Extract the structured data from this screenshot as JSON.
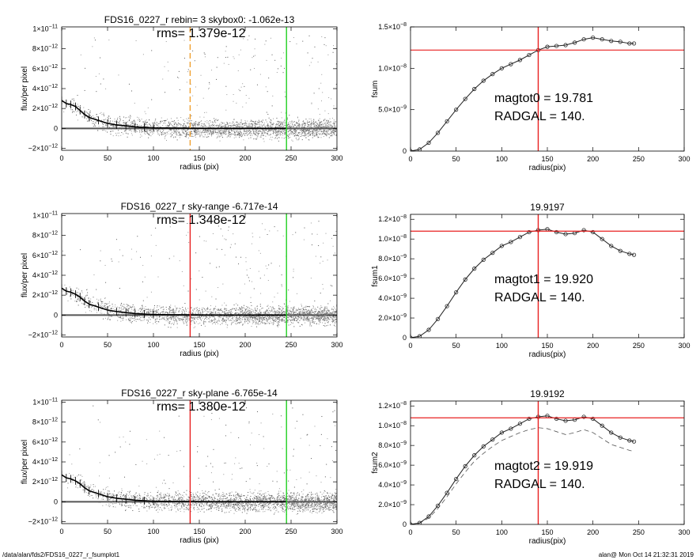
{
  "footer": {
    "path": "/data/alan/fds2/FDS16_0227_r_fsumplot1",
    "stamp": "alan@  Mon Oct 14 21:32:31 2019"
  },
  "colors": {
    "red": "#e82020",
    "green": "#20d020",
    "orange": "#f0a030",
    "grey_points": "#9a9a9a"
  },
  "chart_data": [
    {
      "type": "scatter",
      "title": "FDS16_0227_r rebin= 3    skybox0: -1.062e-13",
      "annotation": "rms= 1.379e-12",
      "xlabel": "radius (pix)",
      "ylabel": "flux/per pixel",
      "xlim": [
        0,
        300
      ],
      "ylim": [
        -2.2e-12,
        1.02e-11
      ],
      "xticks": [
        0,
        50,
        100,
        150,
        200,
        250,
        300
      ],
      "yticks": [
        {
          "v": -2e-12,
          "m": "−2×10",
          "e": "−12"
        },
        {
          "v": 0,
          "m": "0",
          "e": ""
        },
        {
          "v": 2e-12,
          "m": "2×10",
          "e": "−12"
        },
        {
          "v": 4e-12,
          "m": "4×10",
          "e": "−12"
        },
        {
          "v": 6e-12,
          "m": "6×10",
          "e": "−12"
        },
        {
          "v": 8e-12,
          "m": "8×10",
          "e": "−12"
        },
        {
          "v": 1e-11,
          "m": "1×10",
          "e": "−11"
        }
      ],
      "profile_x": [
        0,
        5,
        10,
        15,
        20,
        25,
        30,
        40,
        50,
        60,
        70,
        80,
        90,
        100,
        120,
        140,
        160,
        180,
        200,
        220,
        245
      ],
      "profile_y": [
        2.8e-12,
        2.5e-12,
        2.4e-12,
        2.2e-12,
        1.8e-12,
        1.4e-12,
        1.1e-12,
        8e-13,
        5e-13,
        3.5e-13,
        2.5e-13,
        1.5e-13,
        1e-13,
        5e-14,
        3e-14,
        2e-14,
        0,
        0,
        0,
        0,
        0
      ],
      "vlines": [
        {
          "x": 140,
          "color": "orange",
          "dashed": true
        },
        {
          "x": 245,
          "color": "green",
          "dashed": false
        }
      ]
    },
    {
      "type": "line",
      "title": "",
      "ylabel": "fsum",
      "xlabel": "radius(pix)",
      "xlim": [
        0,
        300
      ],
      "ylim": [
        0,
        1.5e-08
      ],
      "xticks": [
        0,
        50,
        100,
        150,
        200,
        250,
        300
      ],
      "yticks": [
        {
          "v": 0,
          "m": "0",
          "e": ""
        },
        {
          "v": 5e-09,
          "m": "5.0×10",
          "e": "−9"
        },
        {
          "v": 1e-08,
          "m": "1.0×10",
          "e": "−8"
        },
        {
          "v": 1.5e-08,
          "m": "1.5×10",
          "e": "−8"
        }
      ],
      "x": [
        0,
        10,
        20,
        30,
        40,
        50,
        60,
        70,
        80,
        90,
        100,
        110,
        120,
        130,
        140,
        150,
        160,
        170,
        180,
        190,
        200,
        210,
        220,
        230,
        240,
        245
      ],
      "y": [
        0,
        2e-10,
        1e-09,
        2.2e-09,
        3.6e-09,
        5e-09,
        6.3e-09,
        7.5e-09,
        8.5e-09,
        9.3e-09,
        1e-08,
        1.05e-08,
        1.1e-08,
        1.16e-08,
        1.22e-08,
        1.26e-08,
        1.27e-08,
        1.28e-08,
        1.31e-08,
        1.35e-08,
        1.37e-08,
        1.35e-08,
        1.33e-08,
        1.32e-08,
        1.3e-08,
        1.3e-08
      ],
      "hline": 1.22e-08,
      "vline": 140,
      "annotations": [
        "magtot0 =  19.781",
        "RADGAL =    140."
      ]
    },
    {
      "type": "scatter",
      "title": "FDS16_0227_r sky-range -6.717e-14",
      "annotation": "rms= 1.348e-12",
      "xlabel": "radius (pix)",
      "ylabel": "flux/per pixel",
      "xlim": [
        0,
        300
      ],
      "ylim": [
        -2.2e-12,
        1.02e-11
      ],
      "xticks": [
        0,
        50,
        100,
        150,
        200,
        250,
        300
      ],
      "yticks": [
        {
          "v": -2e-12,
          "m": "−2×10",
          "e": "−12"
        },
        {
          "v": 0,
          "m": "0",
          "e": ""
        },
        {
          "v": 2e-12,
          "m": "2×10",
          "e": "−12"
        },
        {
          "v": 4e-12,
          "m": "4×10",
          "e": "−12"
        },
        {
          "v": 6e-12,
          "m": "6×10",
          "e": "−12"
        },
        {
          "v": 8e-12,
          "m": "8×10",
          "e": "−12"
        },
        {
          "v": 1e-11,
          "m": "1×10",
          "e": "−11"
        }
      ],
      "profile_x": [
        0,
        5,
        10,
        15,
        20,
        25,
        30,
        40,
        50,
        60,
        70,
        80,
        90,
        100,
        120,
        140,
        160,
        180,
        200,
        220,
        245
      ],
      "profile_y": [
        2.7e-12,
        2.4e-12,
        2.3e-12,
        2.1e-12,
        1.8e-12,
        1.4e-12,
        1.1e-12,
        8e-13,
        5e-13,
        3.5e-13,
        2.5e-13,
        1.5e-13,
        1e-13,
        5e-14,
        3e-14,
        2e-14,
        0,
        0,
        0,
        0,
        0
      ],
      "vlines": [
        {
          "x": 140,
          "color": "red",
          "dashed": false
        },
        {
          "x": 245,
          "color": "green",
          "dashed": false
        }
      ]
    },
    {
      "type": "line",
      "title": "19.9197",
      "ylabel": "fsum1",
      "xlabel": "radius(pix)",
      "xlim": [
        0,
        300
      ],
      "ylim": [
        0,
        1.25e-08
      ],
      "xticks": [
        0,
        50,
        100,
        150,
        200,
        250,
        300
      ],
      "yticks": [
        {
          "v": 0,
          "m": "0",
          "e": ""
        },
        {
          "v": 2e-09,
          "m": "2.0×10",
          "e": "−9"
        },
        {
          "v": 4e-09,
          "m": "4.0×10",
          "e": "−9"
        },
        {
          "v": 6e-09,
          "m": "6.0×10",
          "e": "−9"
        },
        {
          "v": 8e-09,
          "m": "8.0×10",
          "e": "−9"
        },
        {
          "v": 1e-08,
          "m": "1.0×10",
          "e": "−8"
        },
        {
          "v": 1.2e-08,
          "m": "1.2×10",
          "e": "−8"
        }
      ],
      "x": [
        0,
        10,
        20,
        30,
        40,
        50,
        60,
        70,
        80,
        90,
        100,
        110,
        120,
        130,
        140,
        150,
        160,
        170,
        180,
        190,
        200,
        210,
        220,
        230,
        240,
        245
      ],
      "y": [
        0,
        1.5e-10,
        8e-10,
        1.9e-09,
        3.2e-09,
        4.6e-09,
        5.9e-09,
        7e-09,
        7.9e-09,
        8.6e-09,
        9.3e-09,
        9.7e-09,
        1.02e-08,
        1.07e-08,
        1.09e-08,
        1.1e-08,
        1.07e-08,
        1.05e-08,
        1.06e-08,
        1.09e-08,
        1.07e-08,
        1e-08,
        9.3e-09,
        8.8e-09,
        8.5e-09,
        8.4e-09
      ],
      "hline": 1.08e-08,
      "vline": 140,
      "annotations": [
        "magtot1 =  19.920",
        "RADGAL =    140."
      ]
    },
    {
      "type": "scatter",
      "title": "FDS16_0227_r sky-plane -6.765e-14",
      "annotation": "rms= 1.380e-12",
      "xlabel": "radius (pix)",
      "ylabel": "flux/per pixel",
      "xlim": [
        0,
        300
      ],
      "ylim": [
        -2.2e-12,
        1.02e-11
      ],
      "xticks": [
        0,
        50,
        100,
        150,
        200,
        250,
        300
      ],
      "yticks": [
        {
          "v": -2e-12,
          "m": "−2×10",
          "e": "−12"
        },
        {
          "v": 0,
          "m": "0",
          "e": ""
        },
        {
          "v": 2e-12,
          "m": "2×10",
          "e": "−12"
        },
        {
          "v": 4e-12,
          "m": "4×10",
          "e": "−12"
        },
        {
          "v": 6e-12,
          "m": "6×10",
          "e": "−12"
        },
        {
          "v": 8e-12,
          "m": "8×10",
          "e": "−12"
        },
        {
          "v": 1e-11,
          "m": "1×10",
          "e": "−11"
        }
      ],
      "profile_x": [
        0,
        5,
        10,
        15,
        20,
        25,
        30,
        40,
        50,
        60,
        70,
        80,
        90,
        100,
        120,
        140,
        160,
        180,
        200,
        220,
        245
      ],
      "profile_y": [
        2.7e-12,
        2.4e-12,
        2.3e-12,
        2.1e-12,
        1.8e-12,
        1.4e-12,
        1.1e-12,
        8e-13,
        5e-13,
        3.5e-13,
        2.5e-13,
        1.5e-13,
        1e-13,
        5e-14,
        3e-14,
        2e-14,
        0,
        0,
        0,
        0,
        0
      ],
      "vlines": [
        {
          "x": 140,
          "color": "red",
          "dashed": false
        },
        {
          "x": 245,
          "color": "green",
          "dashed": false
        }
      ]
    },
    {
      "type": "line",
      "title": "19.9192",
      "ylabel": "fsum2",
      "xlabel": "radius(pix)",
      "xlim": [
        0,
        300
      ],
      "ylim": [
        0,
        1.25e-08
      ],
      "xticks": [
        0,
        50,
        100,
        150,
        200,
        250,
        300
      ],
      "yticks": [
        {
          "v": 0,
          "m": "0",
          "e": ""
        },
        {
          "v": 2e-09,
          "m": "2.0×10",
          "e": "−9"
        },
        {
          "v": 4e-09,
          "m": "4.0×10",
          "e": "−9"
        },
        {
          "v": 6e-09,
          "m": "6.0×10",
          "e": "−9"
        },
        {
          "v": 8e-09,
          "m": "8.0×10",
          "e": "−9"
        },
        {
          "v": 1e-08,
          "m": "1.0×10",
          "e": "−8"
        },
        {
          "v": 1.2e-08,
          "m": "1.2×10",
          "e": "−8"
        }
      ],
      "x": [
        0,
        10,
        20,
        30,
        40,
        50,
        60,
        70,
        80,
        90,
        100,
        110,
        120,
        130,
        140,
        150,
        160,
        170,
        180,
        190,
        200,
        210,
        220,
        230,
        240,
        245
      ],
      "y": [
        0,
        1.5e-10,
        8e-10,
        1.9e-09,
        3.2e-09,
        4.6e-09,
        5.9e-09,
        7e-09,
        7.9e-09,
        8.6e-09,
        9.3e-09,
        9.7e-09,
        1.02e-08,
        1.07e-08,
        1.09e-08,
        1.1e-08,
        1.07e-08,
        1.05e-08,
        1.06e-08,
        1.09e-08,
        1.07e-08,
        1e-08,
        9.3e-09,
        8.8e-09,
        8.5e-09,
        8.4e-09
      ],
      "y2": [
        0,
        1.2e-10,
        6.5e-10,
        1.6e-09,
        2.8e-09,
        4.1e-09,
        5.3e-09,
        6.4e-09,
        7.2e-09,
        7.9e-09,
        8.5e-09,
        8.9e-09,
        9.3e-09,
        9.6e-09,
        9.8e-09,
        9.7e-09,
        9.4e-09,
        9.1e-09,
        9.3e-09,
        9.6e-09,
        9.3e-09,
        8.7e-09,
        8.1e-09,
        7.8e-09,
        7.5e-09,
        7.4e-09
      ],
      "hline": 1.08e-08,
      "vline": 140,
      "annotations": [
        "magtot2 =  19.919",
        "RADGAL =    140."
      ]
    }
  ]
}
